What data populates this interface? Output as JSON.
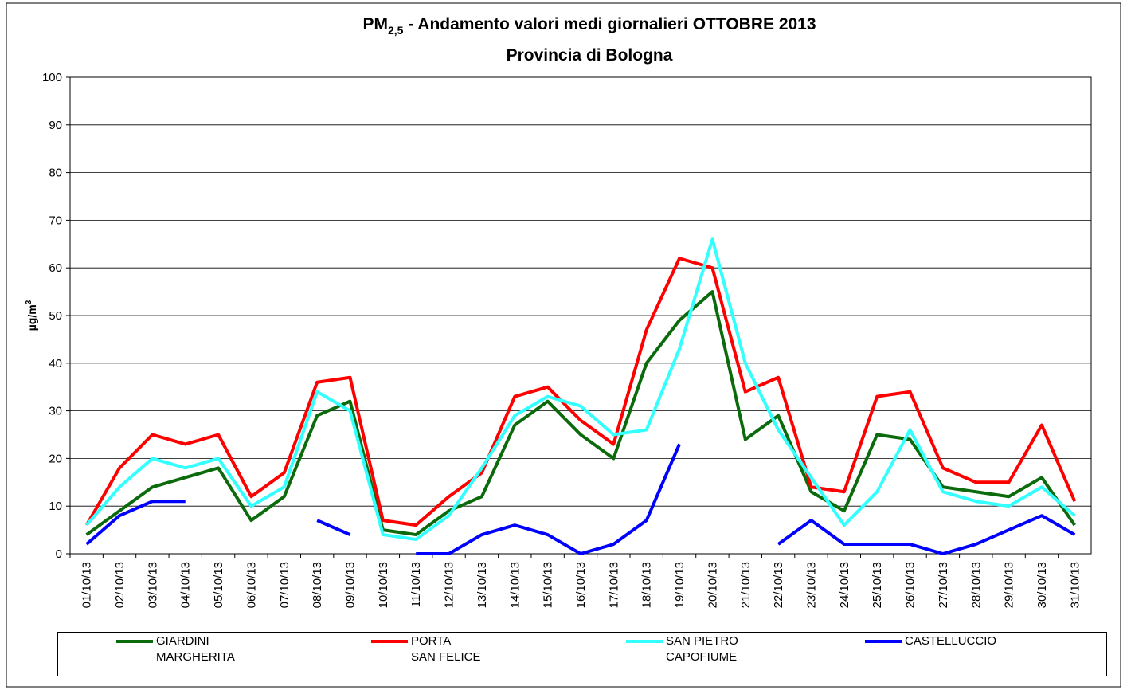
{
  "chart_data": {
    "type": "line",
    "title": {
      "main": "PM",
      "sub": "2,5",
      "rest": " - Andamento valori medi giornalieri OTTOBRE 2013"
    },
    "subtitle": "Provincia di Bologna",
    "ylabel": {
      "text": "µg/m",
      "sup": "3"
    },
    "categories": [
      "01/10/13",
      "02/10/13",
      "03/10/13",
      "04/10/13",
      "05/10/13",
      "06/10/13",
      "07/10/13",
      "08/10/13",
      "09/10/13",
      "10/10/13",
      "11/10/13",
      "12/10/13",
      "13/10/13",
      "14/10/13",
      "15/10/13",
      "16/10/13",
      "17/10/13",
      "18/10/13",
      "19/10/13",
      "20/10/13",
      "21/10/13",
      "22/10/13",
      "23/10/13",
      "24/10/13",
      "25/10/13",
      "26/10/13",
      "27/10/13",
      "28/10/13",
      "29/10/13",
      "30/10/13",
      "31/10/13"
    ],
    "series": [
      {
        "name": "GIARDINI\nMARGHERITA",
        "color": "#0b6a0b",
        "values": [
          4,
          9,
          14,
          16,
          18,
          7,
          12,
          29,
          32,
          5,
          4,
          9,
          12,
          27,
          32,
          25,
          20,
          40,
          49,
          55,
          24,
          29,
          13,
          9,
          25,
          24,
          14,
          13,
          12,
          16,
          6
        ]
      },
      {
        "name": "PORTA\nSAN FELICE",
        "color": "#ff0000",
        "values": [
          6,
          18,
          25,
          23,
          25,
          12,
          17,
          36,
          37,
          7,
          6,
          12,
          17,
          33,
          35,
          28,
          23,
          47,
          62,
          60,
          34,
          37,
          14,
          13,
          33,
          34,
          18,
          15,
          15,
          27,
          11
        ]
      },
      {
        "name": "SAN PIETRO\nCAPOFIUME",
        "color": "#33ffff",
        "values": [
          6,
          14,
          20,
          18,
          20,
          10,
          14,
          34,
          30,
          4,
          3,
          8,
          18,
          29,
          33,
          31,
          25,
          26,
          43,
          66,
          40,
          26,
          16,
          6,
          13,
          26,
          13,
          11,
          10,
          14,
          8
        ]
      },
      {
        "name": "CASTELLUCCIO",
        "color": "#0000ff",
        "values": [
          2,
          8,
          11,
          11,
          null,
          null,
          null,
          7,
          4,
          null,
          0,
          0,
          4,
          6,
          4,
          0,
          2,
          7,
          23,
          null,
          null,
          2,
          7,
          2,
          2,
          2,
          0,
          2,
          5,
          8,
          4
        ]
      }
    ],
    "ylim": [
      0,
      100
    ],
    "yticks": [
      0,
      10,
      20,
      30,
      40,
      50,
      60,
      70,
      80,
      90,
      100
    ],
    "grid": true
  }
}
